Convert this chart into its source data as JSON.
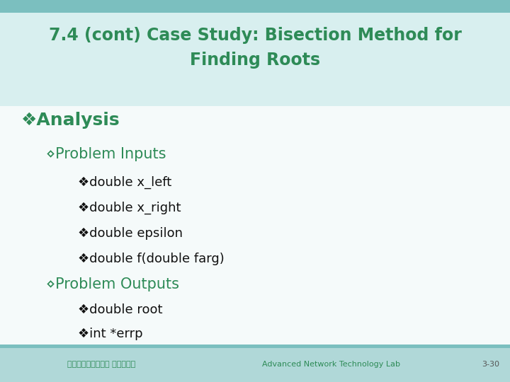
{
  "title_line1": "7.4 (cont) Case Study: Bisection Method for",
  "title_line2": "Finding Roots",
  "title_color": "#2e8b57",
  "bg_color": "#f5fafa",
  "header_bg_top": "#7bbfbf",
  "header_bg_main": "#d8efef",
  "footer_bg": "#b0d8d8",
  "footer_top_strip": "#7bbfbf",
  "level1_bullet": "❖Analysis",
  "level1_color": "#2e8b57",
  "level1_fontsize": 18,
  "level2_color": "#2e8b57",
  "level2_fontsize": 15,
  "level2_items": [
    "⋄Problem Inputs",
    "⋄Problem Outputs"
  ],
  "level3_inputs": [
    "❖double x_left",
    "❖double x_right",
    "❖double epsilon",
    "❖double f(double farg)"
  ],
  "level3_outputs": [
    "❖double root",
    "❖int *errp"
  ],
  "level3_color": "#111111",
  "level3_fontsize": 13,
  "footer_text_cn": "中正大學通訊工程系 潘仁義老師",
  "footer_text_en": "Advanced Network Technology Lab",
  "footer_page": "3-30",
  "footer_color": "#2e8b57",
  "title_fontsize": 17
}
